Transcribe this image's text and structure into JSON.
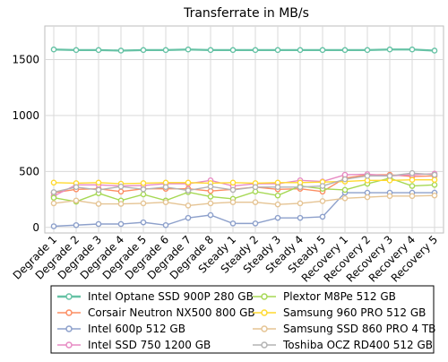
{
  "chart_data": {
    "type": "line",
    "title": "Transferrate in MB/s",
    "xlabel": "",
    "ylabel": "",
    "ylim": [
      -50,
      1800
    ],
    "yticks": [
      0,
      500,
      1000,
      1500
    ],
    "grid": true,
    "legend_position": "bottom",
    "categories": [
      "Degrade 1",
      "Degrade 2",
      "Degrade 3",
      "Degrade 4",
      "Degrade 5",
      "Degrade 6",
      "Degrade 7",
      "Degrade 8",
      "Steady 1",
      "Steady 2",
      "Steady 3",
      "Steady 4",
      "Steady 5",
      "Recovery 1",
      "Recovery 2",
      "Recovery 3",
      "Recovery 4",
      "Recovery 5"
    ],
    "series": [
      {
        "name": "Intel Optane SSD 900P 280 GB",
        "color": "#66c2a5",
        "values": [
          1590,
          1585,
          1585,
          1580,
          1585,
          1585,
          1590,
          1585,
          1585,
          1585,
          1585,
          1585,
          1585,
          1585,
          1585,
          1590,
          1590,
          1580
        ]
      },
      {
        "name": "Corsair Neutron NX500 800 GB",
        "color": "#fc8d62",
        "values": [
          310,
          340,
          345,
          320,
          345,
          345,
          345,
          325,
          340,
          360,
          340,
          345,
          320,
          440,
          470,
          470,
          455,
          460
        ]
      },
      {
        "name": "Intel 600p 512 GB",
        "color": "#8da0cb",
        "values": [
          10,
          20,
          30,
          30,
          45,
          20,
          85,
          110,
          35,
          35,
          85,
          85,
          95,
          310,
          310,
          310,
          310,
          310
        ]
      },
      {
        "name": "Intel SSD 750 1200 GB",
        "color": "#e78ac3",
        "values": [
          280,
          380,
          380,
          370,
          375,
          390,
          390,
          420,
          370,
          390,
          390,
          420,
          410,
          470,
          475,
          460,
          470,
          480
        ]
      },
      {
        "name": "Plextor M8Pe 512 GB",
        "color": "#a6d854",
        "values": [
          265,
          230,
          305,
          240,
          295,
          240,
          315,
          275,
          255,
          320,
          285,
          370,
          345,
          335,
          390,
          440,
          370,
          380
        ]
      },
      {
        "name": "Samsung 960 PRO 512 GB",
        "color": "#ffd92f",
        "values": [
          400,
          395,
          400,
          390,
          395,
          400,
          400,
          395,
          400,
          395,
          400,
          400,
          405,
          410,
          420,
          420,
          425,
          425
        ]
      },
      {
        "name": "Samsung SSD 860 PRO 4 TB",
        "color": "#e5c494",
        "values": [
          215,
          240,
          210,
          210,
          215,
          225,
          195,
          215,
          225,
          225,
          205,
          215,
          235,
          260,
          270,
          280,
          280,
          285
        ]
      },
      {
        "name": "Toshiba OCZ RD400 512 GB",
        "color": "#b3b3b3",
        "values": [
          315,
          360,
          335,
          365,
          340,
          360,
          330,
          365,
          335,
          360,
          360,
          360,
          370,
          430,
          460,
          460,
          485,
          470
        ]
      }
    ]
  }
}
